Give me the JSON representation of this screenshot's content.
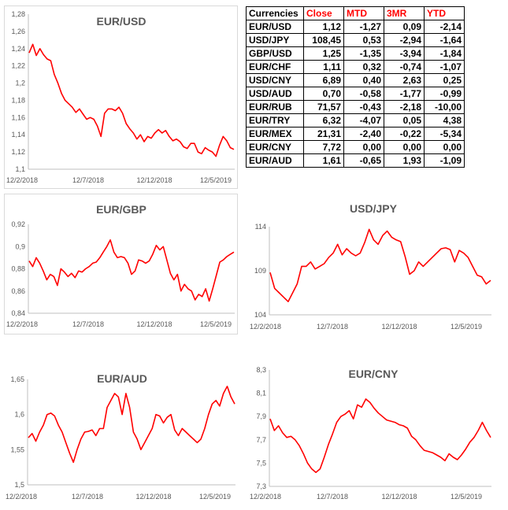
{
  "colors": {
    "series": "#ff0000",
    "axis": "#bfbfbf",
    "title": "#595959",
    "header_red": "#ff0000"
  },
  "table": {
    "title": "Currencies",
    "columns": [
      "Close",
      "MTD",
      "3MR",
      "YTD"
    ],
    "rows": [
      {
        "name": "EUR/USD",
        "close": "1,12",
        "mtd": "-1,27",
        "r3m": "0,09",
        "ytd": "-2,14"
      },
      {
        "name": "USD/JPY",
        "close": "108,45",
        "mtd": "0,53",
        "r3m": "-2,94",
        "ytd": "-1,64"
      },
      {
        "name": "GBP/USD",
        "close": "1,25",
        "mtd": "-1,35",
        "r3m": "-3,94",
        "ytd": "-1,84"
      },
      {
        "name": "EUR/CHF",
        "close": "1,11",
        "mtd": "0,32",
        "r3m": "-0,74",
        "ytd": "-1,07"
      },
      {
        "name": "USD/CNY",
        "close": "6,89",
        "mtd": "0,40",
        "r3m": "2,63",
        "ytd": "0,25"
      },
      {
        "name": "USD/AUD",
        "close": "0,70",
        "mtd": "-0,58",
        "r3m": "-1,77",
        "ytd": "-0,99"
      },
      {
        "name": "EUR/RUB",
        "close": "71,57",
        "mtd": "-0,43",
        "r3m": "-2,18",
        "ytd": "-10,00"
      },
      {
        "name": "EUR/TRY",
        "close": "6,32",
        "mtd": "-4,07",
        "r3m": "0,05",
        "ytd": "4,38"
      },
      {
        "name": "EUR/MEX",
        "close": "21,31",
        "mtd": "-2,40",
        "r3m": "-0,22",
        "ytd": "-5,34"
      },
      {
        "name": "EUR/CNY",
        "close": "7,72",
        "mtd": "0,00",
        "r3m": "0,00",
        "ytd": "0,00"
      },
      {
        "name": "EUR/AUD",
        "close": "1,61",
        "mtd": "-0,65",
        "r3m": "1,93",
        "ytd": "-1,09"
      }
    ]
  },
  "chart_data": [
    {
      "type": "line",
      "title": "EUR/USD",
      "ylim": [
        1.1,
        1.28
      ],
      "yticks": [
        "1,1",
        "1,12",
        "1,14",
        "1,16",
        "1,18",
        "1,2",
        "1,22",
        "1,24",
        "1,26",
        "1,28"
      ],
      "xticks": [
        "12/2/2018",
        "12/7/2018",
        "12/12/2018",
        "12/5/2019"
      ],
      "series": [
        {
          "values": [
            1.235,
            1.245,
            1.232,
            1.24,
            1.233,
            1.228,
            1.226,
            1.21,
            1.2,
            1.188,
            1.18,
            1.176,
            1.172,
            1.166,
            1.17,
            1.164,
            1.158,
            1.16,
            1.158,
            1.15,
            1.138,
            1.165,
            1.17,
            1.17,
            1.168,
            1.172,
            1.165,
            1.153,
            1.147,
            1.142,
            1.135,
            1.14,
            1.132,
            1.138,
            1.136,
            1.142,
            1.146,
            1.142,
            1.145,
            1.138,
            1.133,
            1.135,
            1.132,
            1.126,
            1.124,
            1.13,
            1.13,
            1.12,
            1.118,
            1.125,
            1.122,
            1.12,
            1.115,
            1.128,
            1.138,
            1.133,
            1.125,
            1.123
          ]
        }
      ]
    },
    {
      "type": "line",
      "title": "EUR/GBP",
      "ylim": [
        0.84,
        0.92
      ],
      "yticks": [
        "0,84",
        "0,86",
        "0,88",
        "0,9",
        "0,92"
      ],
      "xticks": [
        "12/2/2018",
        "12/7/2018",
        "12/12/2018",
        "12/5/2019"
      ],
      "series": [
        {
          "values": [
            0.887,
            0.882,
            0.89,
            0.885,
            0.878,
            0.87,
            0.875,
            0.873,
            0.865,
            0.88,
            0.877,
            0.873,
            0.876,
            0.872,
            0.878,
            0.877,
            0.88,
            0.882,
            0.885,
            0.886,
            0.89,
            0.895,
            0.9,
            0.906,
            0.895,
            0.89,
            0.891,
            0.89,
            0.885,
            0.875,
            0.878,
            0.888,
            0.887,
            0.885,
            0.887,
            0.893,
            0.901,
            0.897,
            0.9,
            0.888,
            0.876,
            0.87,
            0.875,
            0.86,
            0.866,
            0.862,
            0.86,
            0.852,
            0.857,
            0.855,
            0.862,
            0.851,
            0.862,
            0.874,
            0.886,
            0.888,
            0.891,
            0.893,
            0.895
          ]
        }
      ]
    },
    {
      "type": "line",
      "title": "USD/JPY",
      "ylim": [
        104,
        114
      ],
      "yticks": [
        "104",
        "109",
        "114"
      ],
      "xticks": [
        "12/2/2018",
        "12/7/2018",
        "12/12/2018",
        "12/5/2019"
      ],
      "series": [
        {
          "values": [
            108.8,
            107.0,
            106.5,
            106.0,
            105.5,
            106.5,
            107.5,
            109.5,
            109.5,
            110.0,
            109.2,
            109.5,
            109.8,
            110.5,
            111.0,
            112.0,
            110.8,
            111.5,
            111.0,
            110.7,
            111.0,
            112.2,
            113.7,
            112.5,
            112.0,
            113.0,
            113.5,
            112.8,
            112.5,
            112.3,
            110.6,
            108.6,
            109.0,
            110.0,
            109.5,
            110.0,
            110.5,
            111.0,
            111.5,
            111.6,
            111.4,
            110.0,
            111.3,
            111.0,
            110.5,
            109.5,
            108.5,
            108.3,
            107.5,
            107.9
          ]
        }
      ]
    },
    {
      "type": "line",
      "title": "EUR/AUD",
      "ylim": [
        1.5,
        1.65
      ],
      "yticks": [
        "1,5",
        "1,55",
        "1,6",
        "1,65"
      ],
      "xticks": [
        "12/2/2018",
        "12/7/2018",
        "12/12/2018",
        "12/5/2019"
      ],
      "series": [
        {
          "values": [
            1.567,
            1.573,
            1.562,
            1.575,
            1.585,
            1.6,
            1.602,
            1.598,
            1.585,
            1.575,
            1.56,
            1.545,
            1.532,
            1.55,
            1.565,
            1.575,
            1.576,
            1.578,
            1.57,
            1.58,
            1.58,
            1.61,
            1.62,
            1.63,
            1.625,
            1.6,
            1.63,
            1.61,
            1.575,
            1.565,
            1.55,
            1.56,
            1.57,
            1.58,
            1.6,
            1.598,
            1.588,
            1.596,
            1.6,
            1.578,
            1.57,
            1.58,
            1.575,
            1.57,
            1.565,
            1.56,
            1.565,
            1.58,
            1.6,
            1.615,
            1.62,
            1.612,
            1.63,
            1.64,
            1.625,
            1.615
          ]
        }
      ]
    },
    {
      "type": "line",
      "title": "EUR/CNY",
      "ylim": [
        7.3,
        8.3
      ],
      "yticks": [
        "7,3",
        "7,5",
        "7,7",
        "7,9",
        "8,1",
        "8,3"
      ],
      "xticks": [
        "12/2/2018",
        "12/7/2018",
        "12/12/2018",
        "12/5/2019"
      ],
      "series": [
        {
          "values": [
            7.88,
            7.78,
            7.82,
            7.76,
            7.72,
            7.73,
            7.7,
            7.65,
            7.58,
            7.5,
            7.45,
            7.42,
            7.45,
            7.55,
            7.66,
            7.75,
            7.85,
            7.9,
            7.92,
            7.95,
            7.88,
            8.0,
            7.98,
            8.05,
            8.02,
            7.97,
            7.93,
            7.9,
            7.87,
            7.86,
            7.85,
            7.83,
            7.82,
            7.8,
            7.73,
            7.7,
            7.65,
            7.61,
            7.6,
            7.59,
            7.57,
            7.55,
            7.52,
            7.58,
            7.55,
            7.53,
            7.57,
            7.62,
            7.68,
            7.72,
            7.78,
            7.85,
            7.78,
            7.72
          ]
        }
      ]
    }
  ]
}
